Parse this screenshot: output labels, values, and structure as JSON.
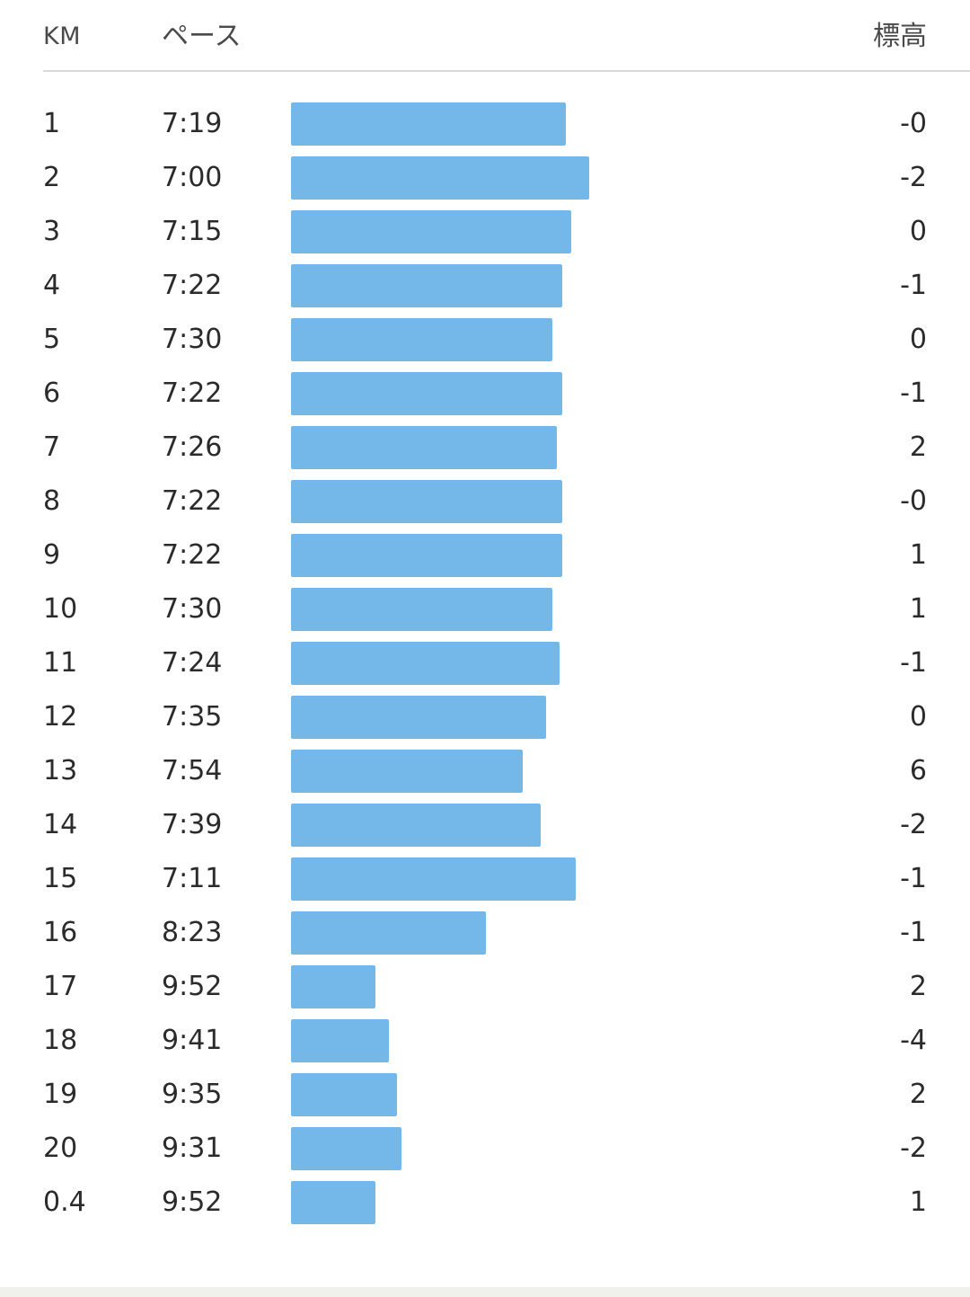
{
  "header": {
    "km_label": "KM",
    "pace_label": "ペース",
    "elevation_label": "標高"
  },
  "colors": {
    "bar": "#74b8ea"
  },
  "pace_scale": {
    "min_seconds": 270,
    "max_seconds": 660
  },
  "splits": [
    {
      "km": "1",
      "pace": "7:19",
      "pace_seconds": 439,
      "elevation": "-0"
    },
    {
      "km": "2",
      "pace": "7:00",
      "pace_seconds": 420,
      "elevation": "-2"
    },
    {
      "km": "3",
      "pace": "7:15",
      "pace_seconds": 435,
      "elevation": "0"
    },
    {
      "km": "4",
      "pace": "7:22",
      "pace_seconds": 442,
      "elevation": "-1"
    },
    {
      "km": "5",
      "pace": "7:30",
      "pace_seconds": 450,
      "elevation": "0"
    },
    {
      "km": "6",
      "pace": "7:22",
      "pace_seconds": 442,
      "elevation": "-1"
    },
    {
      "km": "7",
      "pace": "7:26",
      "pace_seconds": 446,
      "elevation": "2"
    },
    {
      "km": "8",
      "pace": "7:22",
      "pace_seconds": 442,
      "elevation": "-0"
    },
    {
      "km": "9",
      "pace": "7:22",
      "pace_seconds": 442,
      "elevation": "1"
    },
    {
      "km": "10",
      "pace": "7:30",
      "pace_seconds": 450,
      "elevation": "1"
    },
    {
      "km": "11",
      "pace": "7:24",
      "pace_seconds": 444,
      "elevation": "-1"
    },
    {
      "km": "12",
      "pace": "7:35",
      "pace_seconds": 455,
      "elevation": "0"
    },
    {
      "km": "13",
      "pace": "7:54",
      "pace_seconds": 474,
      "elevation": "6"
    },
    {
      "km": "14",
      "pace": "7:39",
      "pace_seconds": 459,
      "elevation": "-2"
    },
    {
      "km": "15",
      "pace": "7:11",
      "pace_seconds": 431,
      "elevation": "-1"
    },
    {
      "km": "16",
      "pace": "8:23",
      "pace_seconds": 503,
      "elevation": "-1"
    },
    {
      "km": "17",
      "pace": "9:52",
      "pace_seconds": 592,
      "elevation": "2"
    },
    {
      "km": "18",
      "pace": "9:41",
      "pace_seconds": 581,
      "elevation": "-4"
    },
    {
      "km": "19",
      "pace": "9:35",
      "pace_seconds": 575,
      "elevation": "2"
    },
    {
      "km": "20",
      "pace": "9:31",
      "pace_seconds": 571,
      "elevation": "-2"
    },
    {
      "km": "0.4",
      "pace": "9:52",
      "pace_seconds": 592,
      "elevation": "1"
    }
  ]
}
